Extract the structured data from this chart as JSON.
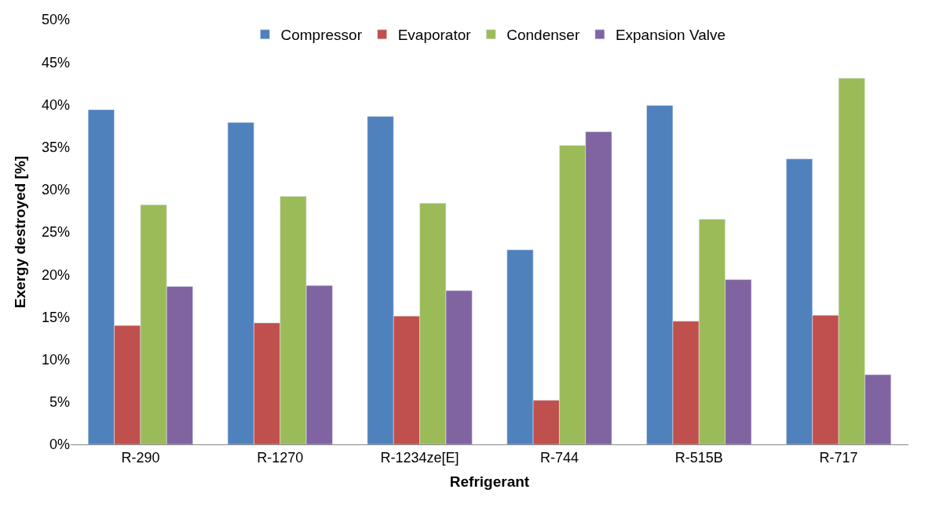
{
  "chart_data": {
    "type": "bar",
    "xlabel": "Refrigerant",
    "ylabel": "Exergy destroyed [%]",
    "categories": [
      "R-290",
      "R-1270",
      "R-1234ze[E]",
      "R-744",
      "R-515B",
      "R-717"
    ],
    "series": [
      {
        "name": "Compressor",
        "color": "#4f81bd",
        "values": [
          39.4,
          37.9,
          38.6,
          22.9,
          39.9,
          33.6
        ]
      },
      {
        "name": "Evaporator",
        "color": "#c0504d",
        "values": [
          14.0,
          14.3,
          15.1,
          5.2,
          14.5,
          15.2
        ]
      },
      {
        "name": "Condenser",
        "color": "#9bbb59",
        "values": [
          28.2,
          29.2,
          28.4,
          35.2,
          26.5,
          43.1
        ]
      },
      {
        "name": "Expansion Valve",
        "color": "#8064a2",
        "values": [
          18.6,
          18.7,
          18.1,
          36.8,
          19.4,
          8.2
        ]
      }
    ],
    "ylim": [
      0,
      50
    ],
    "yticks": [
      {
        "value": 0,
        "label": "0%"
      },
      {
        "value": 5,
        "label": "5%"
      },
      {
        "value": 10,
        "label": "10%"
      },
      {
        "value": 15,
        "label": "15%"
      },
      {
        "value": 20,
        "label": "20%"
      },
      {
        "value": 25,
        "label": "25%"
      },
      {
        "value": 30,
        "label": "30%"
      },
      {
        "value": 35,
        "label": "35%"
      },
      {
        "value": 40,
        "label": "40%"
      },
      {
        "value": 45,
        "label": "45%"
      },
      {
        "value": 50,
        "label": "50%"
      }
    ],
    "legend": "top",
    "grid": false
  }
}
